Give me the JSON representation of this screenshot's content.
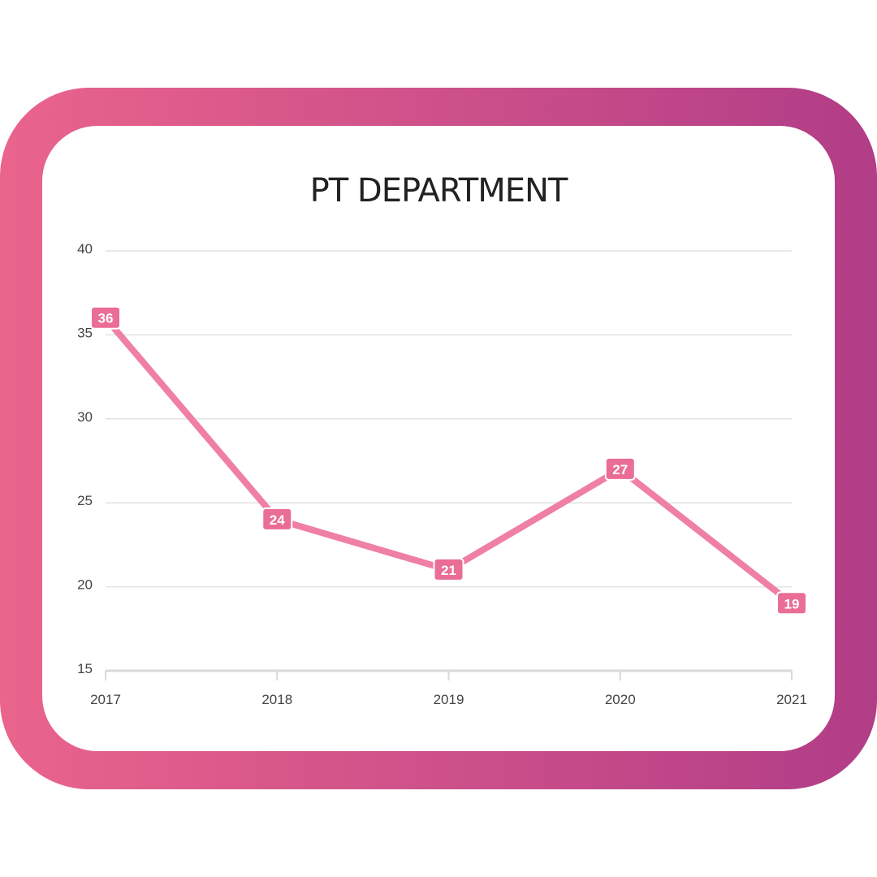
{
  "colors": {
    "frame_start": "#ea648c",
    "frame_end": "#b13d87",
    "line": "#ef7fa4",
    "label_bg": "#ea6d95",
    "grid": "#e2e2e2"
  },
  "chart_data": {
    "type": "line",
    "title": "PT DEPARTMENT",
    "categories": [
      "2017",
      "2018",
      "2019",
      "2020",
      "2021"
    ],
    "series": [
      {
        "values": [
          36,
          24,
          21,
          27,
          19
        ]
      }
    ],
    "y_ticks": [
      15,
      20,
      25,
      30,
      35,
      40
    ],
    "ylim": [
      15,
      40
    ],
    "grid": true,
    "data_labels": true,
    "legend": "none"
  }
}
